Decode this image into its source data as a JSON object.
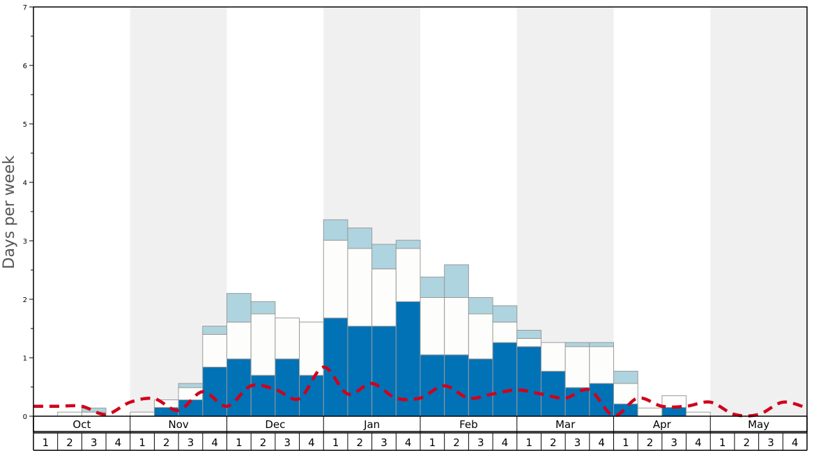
{
  "chart_data": {
    "type": "bar",
    "ylabel": "Days per week",
    "ylim": [
      0,
      7
    ],
    "yticks": [
      "0",
      "1",
      "2",
      "3",
      "4",
      "5",
      "6",
      "7"
    ],
    "months": [
      "Oct",
      "Nov",
      "Dec",
      "Jan",
      "Feb",
      "Mar",
      "Apr",
      "May"
    ],
    "week_labels": [
      "1",
      "2",
      "3",
      "4"
    ],
    "stacked_series": [
      {
        "color": "#0072b5",
        "values": [
          0,
          0,
          0,
          0,
          0,
          0.15,
          0.28,
          0.84,
          0.98,
          0.7,
          0.98,
          0.7,
          1.68,
          1.54,
          1.54,
          1.96,
          1.05,
          1.05,
          0.98,
          1.26,
          1.19,
          0.77,
          0.49,
          0.56,
          0.21,
          0,
          0.15,
          0,
          0,
          0,
          0,
          0
        ]
      },
      {
        "color": "#fdfdfb",
        "values": [
          0,
          0.07,
          0.07,
          0,
          0.07,
          0.13,
          0.21,
          0.56,
          0.63,
          1.05,
          0.7,
          0.91,
          1.33,
          1.33,
          0.98,
          0.91,
          0.98,
          0.98,
          0.77,
          0.35,
          0.14,
          0.49,
          0.7,
          0.63,
          0.35,
          0.14,
          0.2,
          0.07,
          0,
          0,
          0,
          0
        ]
      },
      {
        "color": "#aed4df",
        "values": [
          0,
          0,
          0.07,
          0,
          0,
          0,
          0.07,
          0.14,
          0.49,
          0.21,
          0,
          0,
          0.35,
          0.35,
          0.42,
          0.14,
          0.35,
          0.56,
          0.28,
          0.28,
          0.14,
          0,
          0.07,
          0.07,
          0.21,
          0,
          0,
          0,
          0,
          0,
          0,
          0
        ]
      }
    ],
    "dashed_line": {
      "color": "#d0021b",
      "values": [
        0.17,
        0.17,
        0.17,
        0.03,
        0.24,
        0.3,
        0.1,
        0.42,
        0.17,
        0.52,
        0.46,
        0.3,
        0.84,
        0.38,
        0.56,
        0.31,
        0.31,
        0.52,
        0.31,
        0.38,
        0.45,
        0.38,
        0.31,
        0.45,
        0.01,
        0.31,
        0.17,
        0.17,
        0.24,
        0.03,
        0.03,
        0.24,
        0.14
      ]
    },
    "grid": false,
    "alternating_month_shading": true
  }
}
